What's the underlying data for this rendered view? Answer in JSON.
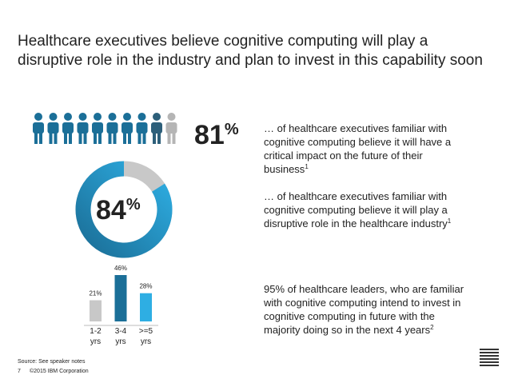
{
  "title": [
    "Healthcare executives believe cognitive computing will play a",
    "disruptive role in the industry and plan to invest in this capability soon"
  ],
  "people_stat": {
    "value": 81,
    "unit": "%",
    "lines": [
      "… of healthcare executives familiar with",
      "cognitive computing believe it will have a",
      "critical impact on the future of their",
      "business"
    ],
    "footnote": "1"
  },
  "donut_stat": {
    "value": 84,
    "unit": "%",
    "lines": [
      "… of healthcare executives familiar with",
      "cognitive computing believe it will play a",
      "disruptive role in the healthcare industry"
    ],
    "footnote": "1"
  },
  "bar_chart": {
    "type": "bar",
    "categories": [
      "1-2 yrs",
      "3-4 yrs",
      ">=5 yrs"
    ],
    "values": [
      21,
      46,
      28
    ],
    "value_labels": [
      "21%",
      "46%",
      "28%"
    ],
    "colors": [
      "#c8c8c8",
      "#1b6f98",
      "#2eaee3"
    ],
    "ylim": [
      0,
      46
    ]
  },
  "invest_stat": {
    "lines": [
      "95% of healthcare leaders, who are familiar",
      "with cognitive computing intend to invest in",
      "cognitive computing in future with the",
      "majority doing so in the next 4 years"
    ],
    "footnote": "2"
  },
  "footer": {
    "source": "Source: See speaker notes",
    "page": "7",
    "copyright": "©2015 IBM Corporation"
  }
}
